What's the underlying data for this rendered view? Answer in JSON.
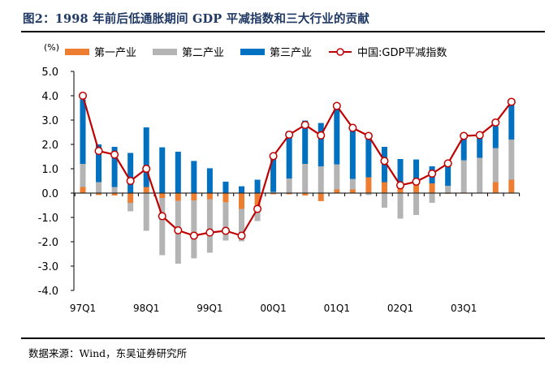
{
  "header": {
    "title": "图2：1998 年前后低通胀期间 GDP 平减指数和三大行业的贡献"
  },
  "footer": {
    "source": "数据来源：Wind，东吴证券研究所"
  },
  "chart_data": {
    "type": "bar",
    "subtype": "stacked-bar-with-line",
    "title": "图2：1998 年前后低通胀期间 GDP 平减指数和三大行业的贡献",
    "unit_label": "(%)",
    "xlabel": "",
    "ylabel": "(%)",
    "ylim": [
      -4.0,
      5.0
    ],
    "yticks": [
      5.0,
      4.0,
      3.0,
      2.0,
      1.0,
      0.0,
      -1.0,
      -2.0,
      -3.0,
      -4.0
    ],
    "ytick_labels": [
      "5.0",
      "4.0",
      "3.0",
      "2.0",
      "1.0",
      "0.0",
      "-1.0",
      "-2.0",
      "-3.0",
      "-4.0"
    ],
    "grid": false,
    "legend_position": "top",
    "categories": [
      "97Q1",
      "97Q2",
      "97Q3",
      "97Q4",
      "98Q1",
      "98Q2",
      "98Q3",
      "98Q4",
      "99Q1",
      "99Q2",
      "99Q3",
      "99Q4",
      "00Q1",
      "00Q2",
      "00Q3",
      "00Q4",
      "01Q1",
      "01Q2",
      "01Q3",
      "01Q4",
      "02Q1",
      "02Q2",
      "02Q3",
      "02Q4",
      "03Q1",
      "03Q2",
      "03Q3",
      "03Q4"
    ],
    "xtick_labels": [
      "97Q1",
      "",
      "",
      "",
      "98Q1",
      "",
      "",
      "",
      "99Q1",
      "",
      "",
      "",
      "00Q1",
      "",
      "",
      "",
      "01Q1",
      "",
      "",
      "",
      "02Q1",
      "",
      "",
      "",
      "03Q1",
      "",
      "",
      ""
    ],
    "series": [
      {
        "name": "第一产业",
        "kind": "bar",
        "color": "#ED7D31",
        "values": [
          0.25,
          -0.08,
          -0.1,
          -0.4,
          0.25,
          -0.2,
          -0.32,
          -0.3,
          -0.25,
          -0.38,
          -0.65,
          -0.6,
          -0.05,
          -0.05,
          -0.1,
          -0.33,
          0.15,
          0.15,
          0.65,
          0.45,
          0.2,
          0.4,
          0.4,
          -0.03,
          0.03,
          0.0,
          0.45,
          0.55
        ]
      },
      {
        "name": "第二产业",
        "kind": "bar",
        "color": "#B4B4B4",
        "values": [
          0.95,
          0.45,
          0.25,
          -0.35,
          -1.55,
          -2.35,
          -2.58,
          -2.38,
          -2.2,
          -1.57,
          -1.33,
          -0.55,
          0.05,
          0.6,
          1.2,
          1.1,
          1.03,
          0.43,
          -0.08,
          -0.6,
          -1.05,
          -0.9,
          -0.4,
          0.3,
          1.32,
          1.45,
          1.4,
          1.65
        ]
      },
      {
        "name": "第三产业",
        "kind": "bar",
        "color": "#0070C0",
        "values": [
          2.65,
          1.55,
          1.65,
          1.65,
          2.45,
          1.88,
          1.7,
          1.32,
          1.02,
          0.47,
          0.28,
          0.55,
          1.4,
          1.95,
          1.78,
          1.78,
          2.32,
          2.07,
          1.7,
          1.45,
          1.2,
          0.98,
          0.7,
          0.85,
          0.95,
          0.9,
          0.9,
          1.5
        ]
      },
      {
        "name": "中国:GDP平减指数",
        "kind": "line",
        "color": "#C00000",
        "marker": "circle-hollow",
        "values": [
          4.0,
          1.73,
          1.58,
          0.5,
          1.0,
          -0.95,
          -1.53,
          -1.75,
          -1.62,
          -1.55,
          -1.75,
          -0.65,
          1.52,
          2.4,
          2.8,
          2.37,
          3.58,
          2.68,
          2.35,
          1.32,
          0.32,
          0.47,
          0.8,
          1.22,
          2.35,
          2.38,
          2.9,
          3.75
        ]
      }
    ]
  }
}
